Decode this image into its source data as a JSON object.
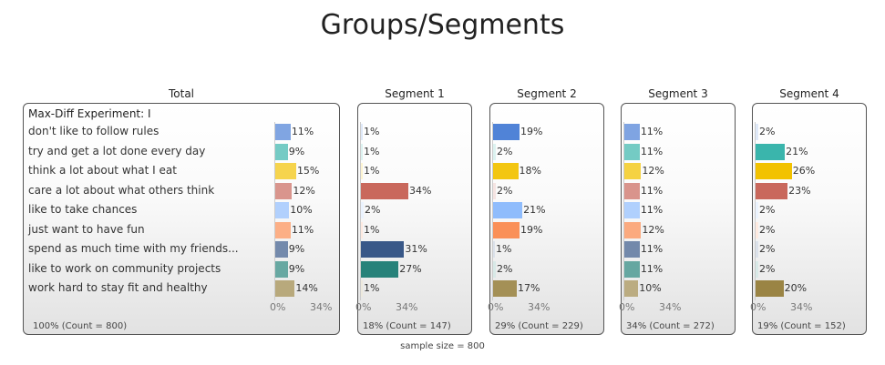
{
  "title": "Groups/Segments",
  "footer": "sample size = 800",
  "chart_data": {
    "type": "bar",
    "orientation": "horizontal",
    "subtitle": "Max-Diff Experiment: I",
    "categories": [
      "don't like to follow rules",
      "try and get a lot done every day",
      "think a lot about what I eat",
      "care a lot about what others think",
      "like to take chances",
      "just want to have fun",
      "spend as much time with my friends...",
      "like to work on community projects",
      "work hard to stay fit and healthy"
    ],
    "xticks": [
      "0%",
      "34%"
    ],
    "xlim": [
      0,
      34
    ],
    "series": [
      {
        "name": "Total",
        "values": [
          11,
          9,
          15,
          12,
          10,
          11,
          9,
          9,
          14
        ],
        "count_label": "100% (Count = 800)"
      },
      {
        "name": "Segment 1",
        "values": [
          1,
          1,
          1,
          34,
          2,
          1,
          31,
          27,
          1
        ],
        "count_label": "18% (Count = 147)"
      },
      {
        "name": "Segment 2",
        "values": [
          19,
          2,
          18,
          2,
          21,
          19,
          1,
          2,
          17
        ],
        "count_label": "29% (Count = 229)"
      },
      {
        "name": "Segment 3",
        "values": [
          11,
          11,
          12,
          11,
          11,
          12,
          11,
          11,
          10
        ],
        "count_label": "34% (Count = 272)"
      },
      {
        "name": "Segment 4",
        "values": [
          2,
          21,
          26,
          23,
          2,
          2,
          2,
          2,
          20
        ],
        "count_label": "19% (Count = 152)"
      }
    ],
    "category_colors": [
      "#4a7fd6",
      "#3ab5ac",
      "#f2c200",
      "#c9685c",
      "#8fbcfc",
      "#fa8c52",
      "#395888",
      "#27827a",
      "#9a8444"
    ],
    "min_bar_color_strength": 10
  }
}
